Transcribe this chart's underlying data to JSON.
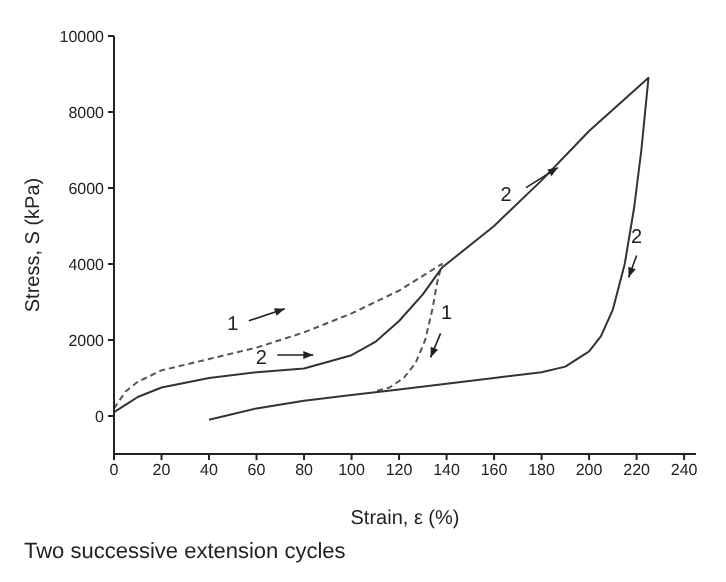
{
  "chart_data": {
    "type": "line",
    "xlabel": "Strain,  ε (%)",
    "ylabel": "Stress,  S (kPa)",
    "xlim": [
      0,
      245
    ],
    "ylim": [
      -1000,
      10000
    ],
    "xticks": [
      0,
      20,
      40,
      60,
      80,
      100,
      120,
      140,
      160,
      180,
      200,
      220,
      240
    ],
    "yticks": [
      0,
      2000,
      4000,
      6000,
      8000,
      10000
    ],
    "grid": false,
    "legend": false,
    "marker": "none",
    "series": [
      {
        "color": "#555555",
        "line_style": "dashed",
        "x": [
          0,
          5,
          10,
          20,
          40,
          60,
          80,
          100,
          120,
          138,
          136,
          134,
          131,
          127,
          122,
          116,
          110
        ],
        "values": [
          200,
          650,
          900,
          1200,
          1500,
          1800,
          2200,
          2700,
          3300,
          4000,
          3500,
          2800,
          2000,
          1400,
          1000,
          750,
          650
        ]
      },
      {
        "color": "#333333",
        "line_style": "solid",
        "x": [
          0,
          5,
          10,
          20,
          40,
          60,
          80,
          100,
          110,
          120,
          130,
          138,
          160,
          180,
          200,
          225,
          222,
          219,
          215,
          210,
          205,
          200,
          190,
          180,
          160,
          140,
          120,
          100,
          80,
          60,
          40
        ],
        "values": [
          100,
          300,
          500,
          750,
          1000,
          1150,
          1250,
          1600,
          1950,
          2500,
          3200,
          3900,
          5000,
          6200,
          7500,
          8900,
          7000,
          5500,
          4000,
          2800,
          2100,
          1700,
          1300,
          1150,
          1000,
          850,
          700,
          550,
          400,
          200,
          -100
        ]
      }
    ],
    "annotations": [
      "1",
      "2",
      "1",
      "2",
      "2",
      "Two successive extension cycles"
    ]
  }
}
